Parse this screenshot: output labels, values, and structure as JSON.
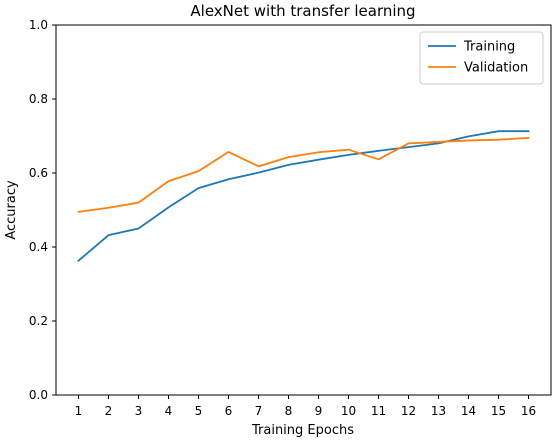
{
  "chart_data": {
    "type": "line",
    "title": "AlexNet with transfer learning",
    "xlabel": "Training Epochs",
    "ylabel": "Accuracy",
    "x": [
      1,
      2,
      3,
      4,
      5,
      6,
      7,
      8,
      9,
      10,
      11,
      12,
      13,
      14,
      15,
      16
    ],
    "xlim": [
      0.25,
      16.75
    ],
    "ylim": [
      0.0,
      1.0
    ],
    "yticks": [
      0.0,
      0.2,
      0.4,
      0.6,
      0.8,
      1.0
    ],
    "ytick_labels": [
      "0.0",
      "0.2",
      "0.4",
      "0.6",
      "0.8",
      "1.0"
    ],
    "xtick_labels": [
      "1",
      "2",
      "3",
      "4",
      "5",
      "6",
      "7",
      "8",
      "9",
      "10",
      "11",
      "12",
      "13",
      "14",
      "15",
      "16"
    ],
    "grid": false,
    "legend_position": "top-right",
    "series": [
      {
        "name": "Training",
        "color": "#1f77b4",
        "values": [
          0.363,
          0.432,
          0.45,
          0.507,
          0.559,
          0.583,
          0.601,
          0.622,
          0.636,
          0.649,
          0.66,
          0.67,
          0.68,
          0.699,
          0.713,
          0.713
        ]
      },
      {
        "name": "Validation",
        "color": "#ff7f0e",
        "values": [
          0.495,
          0.506,
          0.52,
          0.578,
          0.605,
          0.657,
          0.618,
          0.643,
          0.656,
          0.663,
          0.637,
          0.68,
          0.684,
          0.688,
          0.69,
          0.695
        ]
      }
    ]
  }
}
